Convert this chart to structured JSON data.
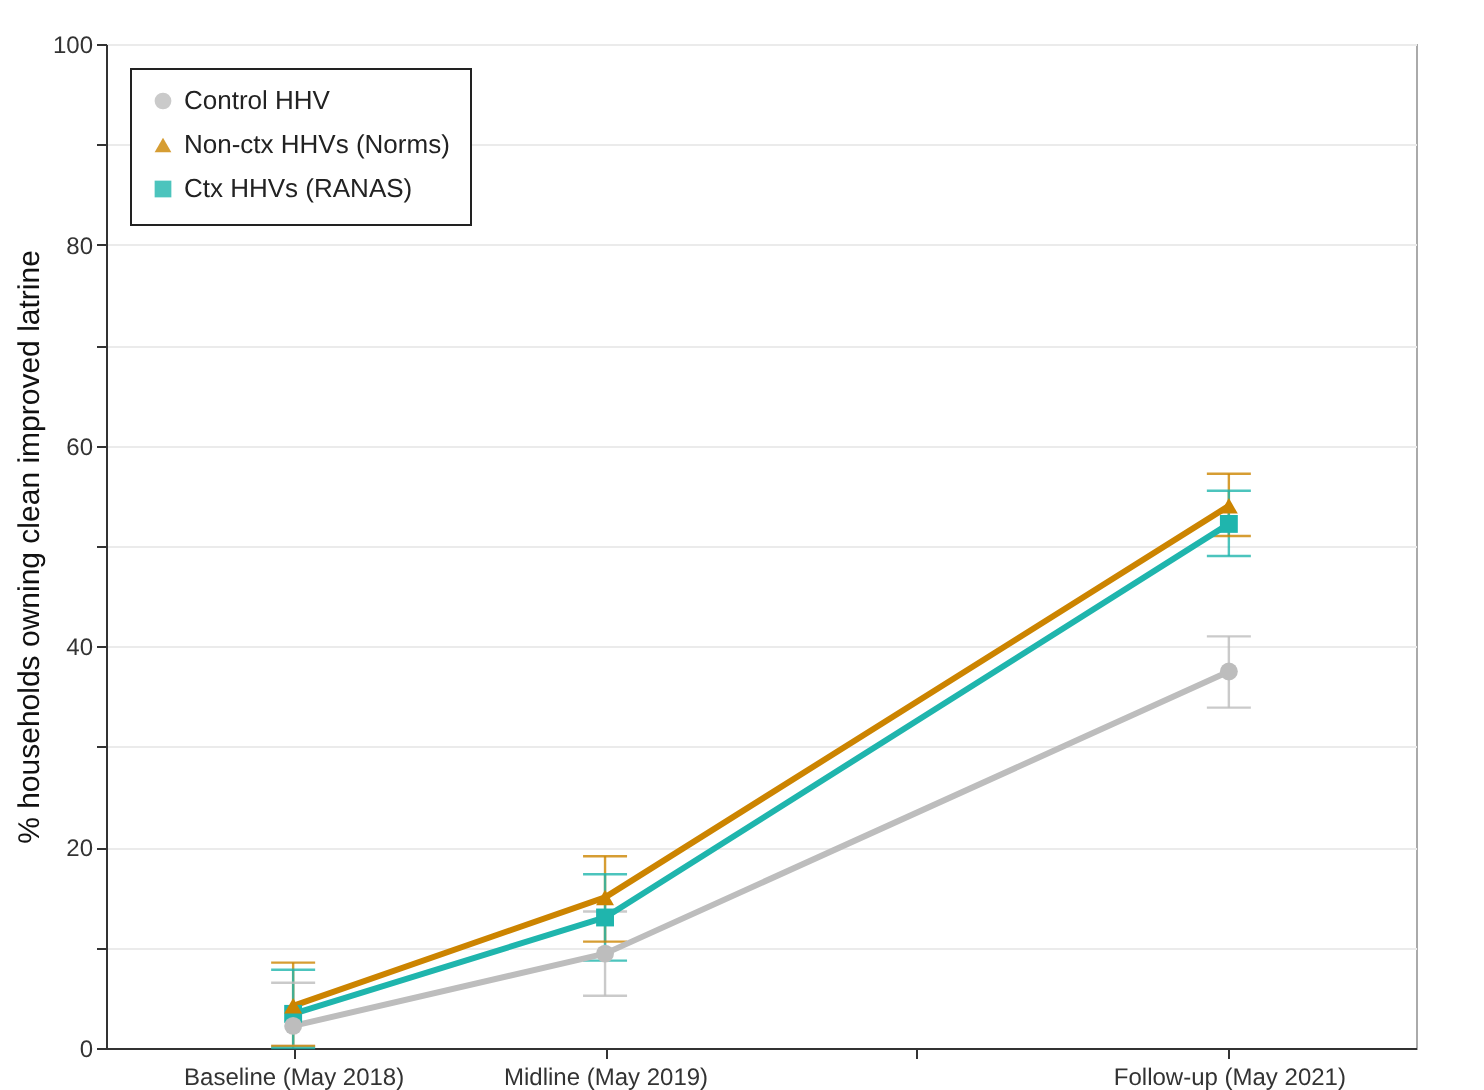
{
  "chart_data": {
    "type": "line",
    "ylabel": "% households owning clean improved latrine",
    "categories": [
      "Baseline (May 2018)",
      "Midline (May 2019)",
      null,
      "Follow-up (May 2021)"
    ],
    "ylim": [
      0,
      100
    ],
    "yticks": [
      0,
      {
        "value": 10,
        "label": null
      },
      20,
      {
        "value": 30,
        "label": null
      },
      40,
      {
        "value": 50,
        "label": null
      },
      60,
      {
        "value": 70,
        "label": null
      },
      80,
      {
        "value": 90,
        "label": null
      },
      100
    ],
    "grid": "y",
    "legend": "top left",
    "series": [
      {
        "name": "Control HHV",
        "color": "#bdbdbd",
        "marker": "circle",
        "values": [
          2.2,
          9.4,
          null,
          37.5
        ],
        "errors": [
          [
            0.2,
            6.5
          ],
          [
            5.2,
            13.6
          ],
          null,
          [
            33.9,
            41
          ]
        ]
      },
      {
        "name": "Non-ctx HHVs (Norms)",
        "color": "#cc8400",
        "marker": "triangle",
        "values": [
          4.2,
          15,
          null,
          54
        ],
        "errors": [
          [
            0.2,
            8.5
          ],
          [
            10.6,
            19.1
          ],
          null,
          [
            51,
            57.2
          ]
        ]
      },
      {
        "name": "Ctx HHVs (RANAS)",
        "color": "#1fb5ad",
        "marker": "square",
        "values": [
          3.4,
          13,
          null,
          52.2
        ],
        "errors": [
          [
            0,
            7.8
          ],
          [
            8.7,
            17.3
          ],
          null,
          [
            49,
            55.5
          ]
        ]
      }
    ]
  }
}
